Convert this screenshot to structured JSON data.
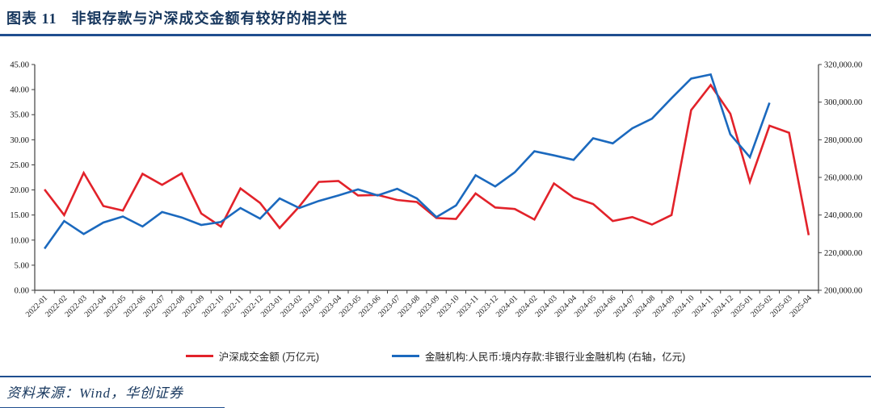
{
  "page": {
    "title_prefix": "图表 11",
    "title": "非银存款与沪深成交金额有较好的相关性",
    "source": "资料来源：Wind，华创证券"
  },
  "colors": {
    "accent_navy": "#1f4e8f",
    "title_text": "#17375e",
    "red_series": "#e2222a",
    "blue_series": "#1b69be",
    "axis": "#404040"
  },
  "chart_data": {
    "type": "line",
    "title": "",
    "xlabel": "",
    "ylabel": "",
    "grid": false,
    "legend_position": "bottom",
    "x": [
      "2022-01",
      "2022-02",
      "2022-03",
      "2022-04",
      "2022-05",
      "2022-06",
      "2022-07",
      "2022-08",
      "2022-09",
      "2022-10",
      "2022-11",
      "2022-12",
      "2023-01",
      "2023-02",
      "2023-03",
      "2023-04",
      "2023-05",
      "2023-06",
      "2023-07",
      "2023-08",
      "2023-09",
      "2023-10",
      "2023-11",
      "2023-12",
      "2024-01",
      "2024-02",
      "2024-03",
      "2024-04",
      "2024-05",
      "2024-06",
      "2024-07",
      "2024-08",
      "2024-09",
      "2024-10",
      "2024-11",
      "2024-12",
      "2025-01",
      "2025-02",
      "2025-03",
      "2025-04"
    ],
    "left_axis": {
      "min": 0,
      "max": 45,
      "step": 5,
      "ticks": [
        "0.00",
        "5.00",
        "10.00",
        "15.00",
        "20.00",
        "25.00",
        "30.00",
        "35.00",
        "40.00",
        "45.00"
      ]
    },
    "right_axis": {
      "min": 200000,
      "max": 320000,
      "step": 20000,
      "ticks": [
        "200,000.00",
        "220,000.00",
        "240,000.00",
        "260,000.00",
        "280,000.00",
        "300,000.00",
        "320,000.00"
      ]
    },
    "series": [
      {
        "name": "沪深成交金额 (万亿元)",
        "axis": "left",
        "color": "#e2222a",
        "values": [
          20.1,
          15.0,
          23.4,
          16.8,
          15.9,
          23.2,
          21.0,
          23.3,
          15.3,
          12.7,
          20.3,
          17.4,
          12.4,
          16.7,
          21.6,
          21.8,
          18.9,
          19.0,
          18.0,
          17.6,
          14.4,
          14.2,
          19.3,
          16.5,
          16.2,
          14.1,
          21.3,
          18.5,
          17.2,
          13.8,
          14.6,
          13.1,
          15.0,
          35.9,
          40.9,
          35.2,
          21.6,
          32.8,
          31.4,
          11.0
        ]
      },
      {
        "name": "金融机构:人民币:境内存款:非银行业金融机构 (右轴，亿元)",
        "axis": "right",
        "color": "#1b69be",
        "values": [
          222100,
          236800,
          229900,
          236000,
          239200,
          233900,
          241600,
          238700,
          234700,
          236300,
          243700,
          238100,
          248800,
          243700,
          247500,
          250400,
          253600,
          250400,
          253900,
          248800,
          238900,
          245100,
          261100,
          255200,
          262700,
          273900,
          271700,
          269300,
          280800,
          278100,
          286100,
          291200,
          302100,
          312500,
          314700,
          282900,
          270700,
          299700,
          null,
          null
        ]
      }
    ]
  }
}
